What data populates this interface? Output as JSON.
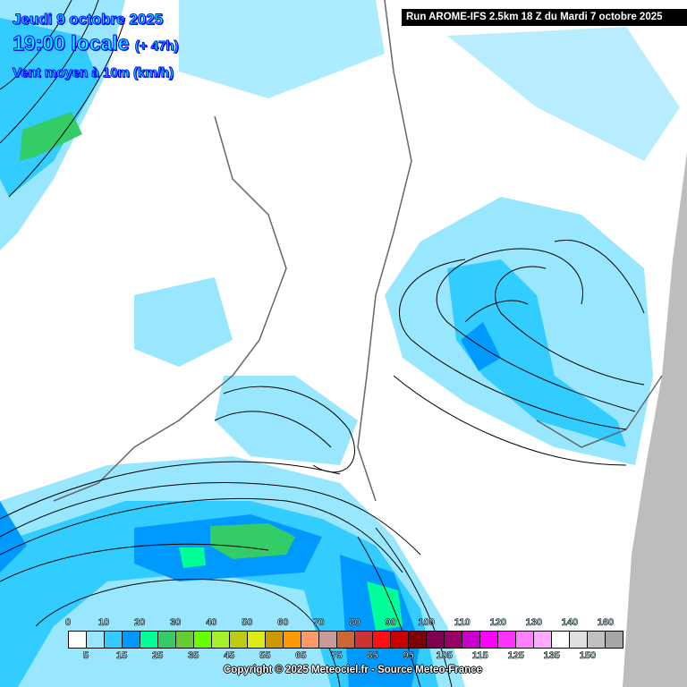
{
  "header": {
    "date": "Jeudi 9 octobre 2025",
    "time": "19:00 locale",
    "offset": "(+ 47h)",
    "parameter": "Vent moyen à 10m (km/h)",
    "run": "Run AROME-IFS 2.5km 18 Z du Mardi 7 octobre 2025"
  },
  "legend": {
    "unit": "km/h",
    "top_labels": [
      "0",
      "10",
      "20",
      "30",
      "40",
      "50",
      "60",
      "70",
      "80",
      "90",
      "100",
      "110",
      "120",
      "130",
      "140",
      "160"
    ],
    "bottom_labels": [
      "5",
      "15",
      "25",
      "35",
      "45",
      "55",
      "65",
      "75",
      "85",
      "95",
      "105",
      "115",
      "125",
      "135",
      "150"
    ],
    "colors": [
      "#ffffff",
      "#99e6ff",
      "#33ccff",
      "#0099ff",
      "#00ff99",
      "#33cc66",
      "#66cc33",
      "#66ff00",
      "#a3f02c",
      "#bfcc14",
      "#dceb14",
      "#cc9900",
      "#ff9900",
      "#ff9966",
      "#cc9999",
      "#cc6633",
      "#cc3333",
      "#ff0f0f",
      "#cc0000",
      "#800000",
      "#800050",
      "#990066",
      "#cc00cc",
      "#ff00ff",
      "#ff33ff",
      "#ff80ff",
      "#ffaaff",
      "#ffffff",
      "#e0e0e0",
      "#c0c0c0",
      "#a6a6a6"
    ]
  },
  "footer": {
    "copyright": "Copyright © 2025 Meteociel.fr - Source Meteo-France"
  }
}
